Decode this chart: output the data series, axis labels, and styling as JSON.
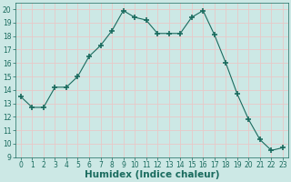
{
  "x": [
    0,
    1,
    2,
    3,
    4,
    5,
    6,
    7,
    8,
    9,
    10,
    11,
    12,
    13,
    14,
    15,
    16,
    17,
    18,
    19,
    20,
    21,
    22,
    23
  ],
  "y": [
    13.5,
    12.7,
    12.7,
    14.2,
    14.2,
    15.0,
    16.5,
    17.3,
    18.4,
    19.9,
    19.4,
    19.2,
    18.2,
    18.2,
    18.2,
    19.4,
    19.9,
    18.1,
    16.0,
    13.7,
    11.8,
    10.3,
    9.5,
    9.7
  ],
  "xlabel": "Humidex (Indice chaleur)",
  "ylim": [
    9,
    20.5
  ],
  "xlim": [
    -0.5,
    23.5
  ],
  "yticks": [
    9,
    10,
    11,
    12,
    13,
    14,
    15,
    16,
    17,
    18,
    19,
    20
  ],
  "xticks": [
    0,
    1,
    2,
    3,
    4,
    5,
    6,
    7,
    8,
    9,
    10,
    11,
    12,
    13,
    14,
    15,
    16,
    17,
    18,
    19,
    20,
    21,
    22,
    23
  ],
  "line_color": "#1a6b5e",
  "bg_color": "#cce8e5",
  "grid_color": "#e8c8c8",
  "tick_color": "#1a6b5e",
  "tick_fontsize": 5.5,
  "xlabel_fontsize": 7.5
}
